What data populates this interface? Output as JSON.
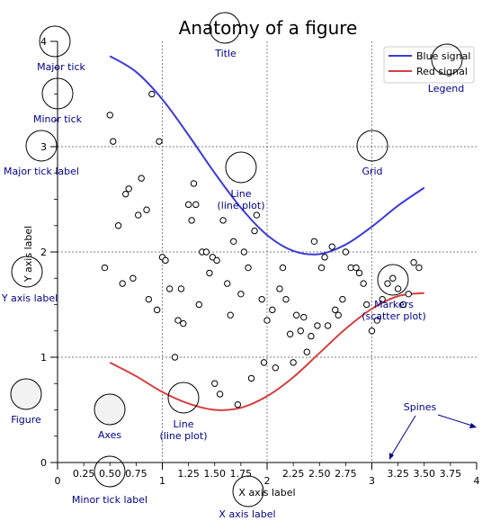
{
  "chart_data": {
    "type": "line",
    "title": "Anatomy of a figure",
    "xlabel": "X axis label",
    "ylabel": "Y axis label",
    "xlim": [
      0,
      4
    ],
    "ylim": [
      0,
      4
    ],
    "grid": true,
    "legend_position": "top-right",
    "major_xticks": [
      "0",
      "1",
      "2",
      "3",
      "4"
    ],
    "major_yticks": [
      "0",
      "1",
      "2",
      "3",
      "4"
    ],
    "minor_xticks": [
      "0.25",
      "0.50",
      "0.75",
      "1.25",
      "1.50",
      "1.75",
      "2.25",
      "2.50",
      "2.75",
      "3.25",
      "3.50",
      "3.75"
    ],
    "series": [
      {
        "name": "Blue signal",
        "color": "#3b3bd9",
        "x": [
          0.5,
          0.75,
          1.0,
          1.25,
          1.5,
          1.75,
          2.0,
          2.25,
          2.5,
          2.75,
          3.0,
          3.25,
          3.5
        ],
        "y": [
          3.86,
          3.71,
          3.45,
          3.11,
          2.75,
          2.42,
          2.16,
          2.01,
          1.98,
          2.07,
          2.24,
          2.44,
          2.61
        ]
      },
      {
        "name": "Red signal",
        "color": "#d43f3f",
        "x": [
          0.5,
          0.75,
          1.0,
          1.25,
          1.5,
          1.75,
          2.0,
          2.25,
          2.5,
          2.75,
          3.0,
          3.25,
          3.5
        ],
        "y": [
          0.95,
          0.82,
          0.67,
          0.56,
          0.5,
          0.52,
          0.63,
          0.81,
          1.04,
          1.27,
          1.46,
          1.58,
          1.61
        ]
      }
    ],
    "scatter": {
      "name": "Markers",
      "x": [
        0.45,
        0.5,
        0.53,
        0.58,
        0.62,
        0.65,
        0.68,
        0.72,
        0.77,
        0.8,
        0.85,
        0.87,
        0.9,
        0.95,
        0.97,
        1.0,
        1.03,
        1.07,
        1.12,
        1.15,
        1.18,
        1.2,
        1.25,
        1.28,
        1.3,
        1.32,
        1.35,
        1.38,
        1.42,
        1.45,
        1.48,
        1.5,
        1.52,
        1.55,
        1.58,
        1.62,
        1.65,
        1.68,
        1.72,
        1.75,
        1.78,
        1.82,
        1.85,
        1.88,
        1.9,
        1.95,
        1.97,
        2.0,
        2.05,
        2.08,
        2.12,
        2.15,
        2.18,
        2.22,
        2.25,
        2.28,
        2.32,
        2.35,
        2.38,
        2.42,
        2.45,
        2.48,
        2.52,
        2.55,
        2.58,
        2.62,
        2.65,
        2.68,
        2.72,
        2.75,
        2.8,
        2.85,
        2.88,
        2.92,
        2.95,
        3.0,
        3.05,
        3.1,
        3.15,
        3.2,
        3.25,
        3.3,
        3.35,
        3.4,
        3.45
      ],
      "y": [
        1.85,
        3.3,
        3.05,
        2.25,
        1.7,
        2.55,
        2.6,
        1.75,
        2.35,
        2.7,
        2.4,
        1.55,
        3.5,
        1.45,
        3.05,
        1.95,
        1.92,
        1.65,
        1.0,
        1.35,
        1.65,
        1.32,
        2.45,
        2.3,
        2.65,
        2.45,
        1.5,
        2.0,
        2.0,
        1.8,
        1.95,
        0.75,
        1.92,
        0.65,
        2.3,
        1.7,
        1.4,
        2.1,
        0.55,
        1.6,
        2.0,
        1.85,
        0.8,
        2.2,
        2.35,
        1.55,
        0.95,
        1.35,
        1.45,
        0.9,
        1.65,
        1.85,
        1.55,
        1.22,
        0.95,
        1.4,
        1.25,
        1.38,
        1.05,
        1.2,
        2.1,
        1.3,
        1.85,
        1.95,
        1.3,
        2.05,
        1.45,
        1.4,
        1.55,
        2.0,
        1.85,
        1.85,
        1.8,
        1.7,
        1.5,
        1.25,
        1.35,
        1.55,
        1.7,
        1.75,
        1.65,
        1.5,
        1.6,
        1.9,
        1.85
      ]
    }
  },
  "legend": {
    "labels": [
      "Blue signal",
      "Red signal"
    ]
  },
  "annotations": {
    "major_tick": "Major tick",
    "minor_tick": "Minor tick",
    "major_tick_label": "Major tick label",
    "y_axis_label": "Y axis label",
    "figure": "Figure",
    "axes": "Axes",
    "title": "Title",
    "legend": "Legend",
    "grid": "Grid",
    "line_blue_1": "Line",
    "line_blue_2": "(line plot)",
    "line_red_1": "Line",
    "line_red_2": "(line plot)",
    "markers_1": "Markers",
    "markers_2": "(scatter plot)",
    "spines": "Spines",
    "minor_tick_label": "Minor tick label",
    "x_axis_label": "X axis label"
  }
}
